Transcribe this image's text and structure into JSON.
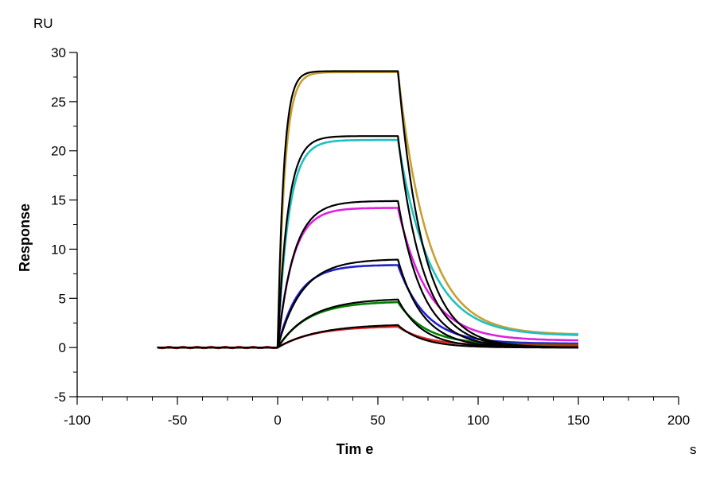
{
  "chart_data": {
    "type": "line",
    "title": "",
    "xlabel": "Tim e",
    "ylabel": "Response",
    "x_unit": "s",
    "y_unit": "RU",
    "xlim": [
      -100,
      200
    ],
    "ylim": [
      -5,
      30
    ],
    "x_ticks": [
      -100,
      -50,
      0,
      50,
      100,
      150,
      200
    ],
    "y_ticks": [
      -5,
      0,
      5,
      10,
      15,
      20,
      25,
      30
    ],
    "x_tick_labels": [
      "-100",
      "-50",
      "0",
      "50",
      "100",
      "150",
      "200"
    ],
    "y_tick_labels": [
      "-5",
      "0",
      "5",
      "10",
      "15",
      "20",
      "25",
      "30"
    ],
    "grid": false,
    "legend": "none",
    "model": {
      "injection_start": 0,
      "injection_end": 60,
      "dissociation_end": 150,
      "baseline_start": -60
    },
    "series": [
      {
        "color": "#c8a030",
        "plateau": 28.0,
        "assoc_tau": 3.5,
        "dissoc_tau": 15,
        "residual": 1.3
      },
      {
        "color": "#20c0c0",
        "plateau": 21.1,
        "assoc_tau": 5.5,
        "dissoc_tau": 16,
        "residual": 1.2
      },
      {
        "color": "#e020e0",
        "plateau": 14.2,
        "assoc_tau": 7.5,
        "dissoc_tau": 15,
        "residual": 0.7
      },
      {
        "color": "#2020d0",
        "plateau": 8.4,
        "assoc_tau": 10,
        "dissoc_tau": 14,
        "residual": 0.4
      },
      {
        "color": "#008000",
        "plateau": 4.7,
        "assoc_tau": 15,
        "dissoc_tau": 14,
        "residual": 0.3
      },
      {
        "color": "#e02020",
        "plateau": 2.2,
        "assoc_tau": 18,
        "dissoc_tau": 14,
        "residual": 0.2
      }
    ],
    "fits": [
      {
        "color": "#000000",
        "plateau": 28.1,
        "assoc_tau": 3.0,
        "dissoc_tau": 12.5,
        "residual": 0
      },
      {
        "color": "#000000",
        "plateau": 21.5,
        "assoc_tau": 5.0,
        "dissoc_tau": 12.5,
        "residual": 0
      },
      {
        "color": "#000000",
        "plateau": 14.9,
        "assoc_tau": 8.0,
        "dissoc_tau": 12.5,
        "residual": 0
      },
      {
        "color": "#000000",
        "plateau": 9.0,
        "assoc_tau": 12,
        "dissoc_tau": 12.5,
        "residual": 0
      },
      {
        "color": "#000000",
        "plateau": 5.0,
        "assoc_tau": 16,
        "dissoc_tau": 12.5,
        "residual": 0
      },
      {
        "color": "#000000",
        "plateau": 2.4,
        "assoc_tau": 20,
        "dissoc_tau": 12.5,
        "residual": 0
      }
    ]
  }
}
